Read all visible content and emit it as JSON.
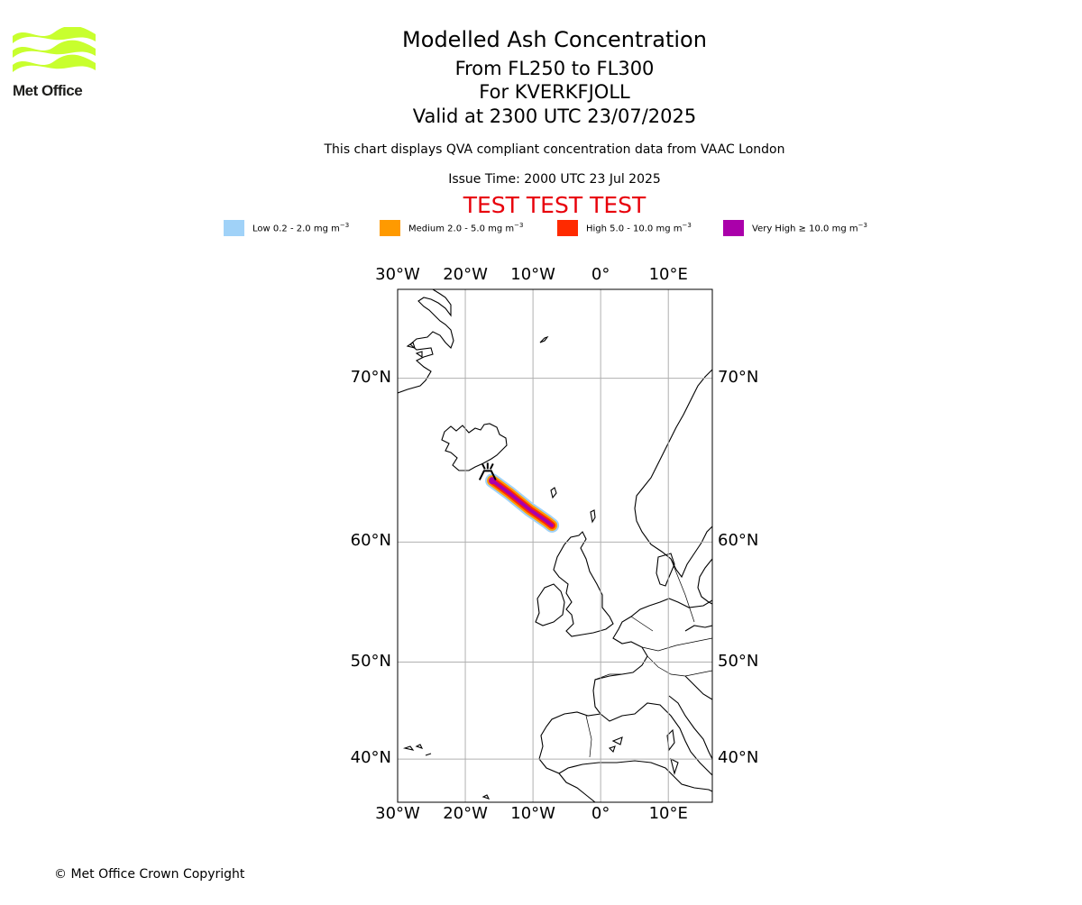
{
  "logo": {
    "text": "Met Office",
    "color": "#c8ff2e"
  },
  "titles": {
    "title": "Modelled Ash Concentration",
    "levels": "From FL250 to FL300",
    "volcano": "For KVERKFJOLL",
    "valid": "Valid at 2300 UTC 23/07/2025",
    "compliance": "This chart displays QVA compliant concentration data from VAAC London",
    "issue": "Issue Time: 2000 UTC 23 Jul 2025",
    "test": "TEST TEST TEST"
  },
  "legend": [
    {
      "label": "Low 0.2 - 2.0 mg m",
      "exp": "−3",
      "color": "#a0d2f8"
    },
    {
      "label": "Medium 2.0 - 5.0 mg m",
      "exp": "−3",
      "color": "#ff9a00"
    },
    {
      "label": "High 5.0 - 10.0 mg m",
      "exp": "−3",
      "color": "#ff2a00"
    },
    {
      "label": "Very High  ≥  10.0 mg m",
      "exp": "−3",
      "color": "#aa00aa"
    }
  ],
  "map": {
    "lon_ticks": [
      "30°W",
      "20°W",
      "10°W",
      "0°",
      "10°E"
    ],
    "lat_ticks": [
      "70°N",
      "60°N",
      "50°N",
      "40°N"
    ],
    "extent": {
      "lon_min": -30,
      "lon_max": 16.5,
      "lat_min": 35,
      "lat_max": 74
    },
    "grid_color": "#b0b0b0",
    "volcano_marker": {
      "lon": -16.7,
      "lat": 64.7
    },
    "ash_plume": {
      "axis": [
        [
          -16.0,
          64.2
        ],
        [
          -13.5,
          63.4
        ],
        [
          -10.5,
          62.3
        ],
        [
          -8.0,
          61.5
        ],
        [
          -7.2,
          61.2
        ]
      ],
      "levels": [
        "Low",
        "Medium",
        "High",
        "Very High"
      ]
    }
  },
  "footer": {
    "copyright": "© Met Office Crown Copyright"
  }
}
